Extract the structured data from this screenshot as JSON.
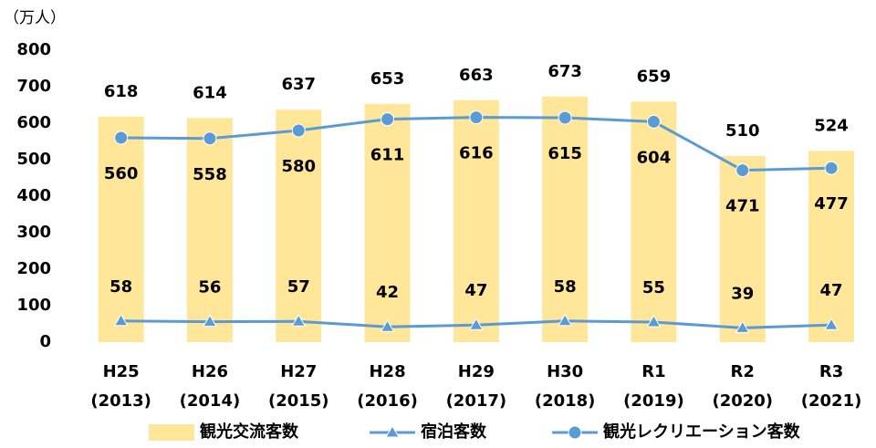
{
  "chart_data": {
    "type": "bar_line",
    "y_label": "（万人）",
    "categories": [
      [
        "H25",
        "(2013)"
      ],
      [
        "H26",
        "(2014)"
      ],
      [
        "H27",
        "(2015)"
      ],
      [
        "H28",
        "(2016)"
      ],
      [
        "H29",
        "(2017)"
      ],
      [
        "H30",
        "(2018)"
      ],
      [
        "R1",
        "(2019)"
      ],
      [
        "R2",
        "(2020)"
      ],
      [
        "R3",
        "(2021)"
      ]
    ],
    "series": [
      {
        "name": "観光交流客数",
        "type": "bar",
        "color": "#ffe699",
        "values": [
          618,
          614,
          637,
          653,
          663,
          673,
          659,
          510,
          524
        ]
      },
      {
        "name": "宿泊客数",
        "type": "line",
        "marker": "triangle",
        "color": "#5b9bd5",
        "values": [
          58,
          56,
          57,
          42,
          47,
          58,
          55,
          39,
          47
        ]
      },
      {
        "name": "観光レクリエーション客数",
        "type": "line",
        "marker": "circle",
        "color": "#5b9bd5",
        "values": [
          560,
          558,
          580,
          611,
          616,
          615,
          604,
          471,
          477
        ]
      }
    ],
    "ylim": [
      0,
      800
    ],
    "yticks": [
      0,
      100,
      200,
      300,
      400,
      500,
      600,
      700,
      800
    ],
    "grid": false,
    "legend": "bottom"
  }
}
